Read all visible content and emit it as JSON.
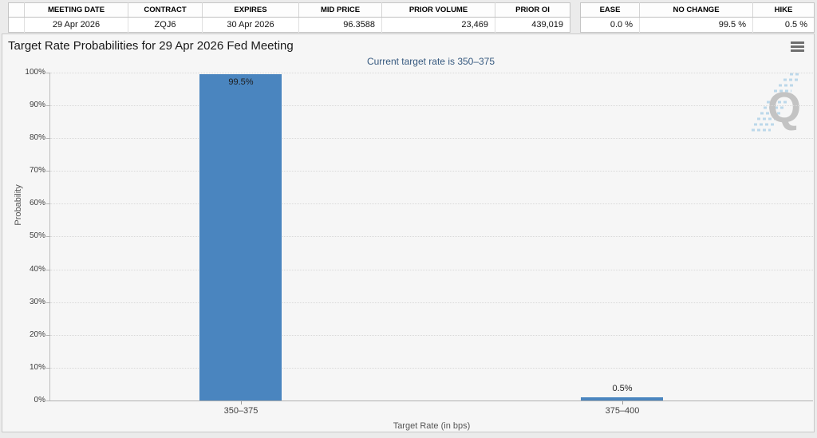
{
  "contract_table": {
    "headers": [
      "MEETING DATE",
      "CONTRACT",
      "EXPIRES",
      "MID PRICE",
      "PRIOR VOLUME",
      "PRIOR OI"
    ],
    "values": [
      "29 Apr 2026",
      "ZQJ6",
      "30 Apr 2026",
      "96.3588",
      "23,469",
      "439,019"
    ]
  },
  "probability_table": {
    "headers": [
      "EASE",
      "NO CHANGE",
      "HIKE"
    ],
    "values": [
      "0.0 %",
      "99.5 %",
      "0.5 %"
    ]
  },
  "chart": {
    "title": "Target Rate Probabilities for 29 Apr 2026 Fed Meeting",
    "subtitle": "Current target rate is 350–375",
    "subtitle_color": "#36597f",
    "watermark_letter": "Q",
    "menu_icon": "hamburger-menu-icon"
  },
  "chart_data": {
    "type": "bar",
    "title": "Target Rate Probabilities for 29 Apr 2026 Fed Meeting",
    "subtitle": "Current target rate is 350–375",
    "categories": [
      "350–375",
      "375–400"
    ],
    "values": [
      99.5,
      0.5
    ],
    "value_labels": [
      "99.5%",
      "0.5%"
    ],
    "xlabel": "Target Rate (in bps)",
    "ylabel": "Probability",
    "ylim": [
      0,
      100
    ],
    "ytick_labels": [
      "0%",
      "10%",
      "20%",
      "30%",
      "40%",
      "50%",
      "60%",
      "70%",
      "80%",
      "90%",
      "100%"
    ],
    "bar_color": "#4a85bf",
    "grid": "horizontal-dotted",
    "legend": "none"
  }
}
